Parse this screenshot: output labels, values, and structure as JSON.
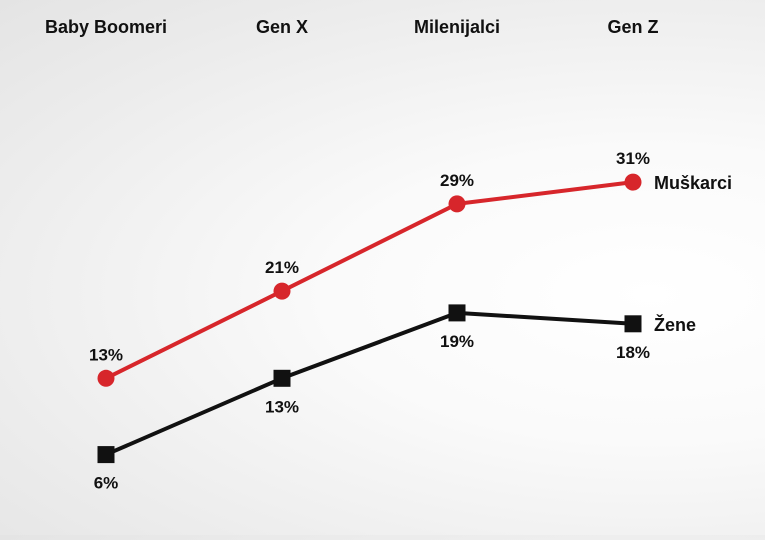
{
  "chart_data": {
    "type": "line",
    "categories": [
      "Baby Boomeri",
      "Gen X",
      "Milenijalci",
      "Gen Z"
    ],
    "series": [
      {
        "name": "Muškarci",
        "values": [
          13,
          21,
          29,
          31
        ],
        "labels": [
          "13%",
          "21%",
          "29%",
          "31%"
        ],
        "color": "#d7262b",
        "marker": "circle"
      },
      {
        "name": "Žene",
        "values": [
          6,
          13,
          19,
          18
        ],
        "labels": [
          "6%",
          "13%",
          "19%",
          "18%"
        ],
        "color": "#111111",
        "marker": "square"
      }
    ],
    "ylim": [
      0,
      35
    ],
    "grid": false,
    "legend": "none (series names printed at line ends)"
  }
}
